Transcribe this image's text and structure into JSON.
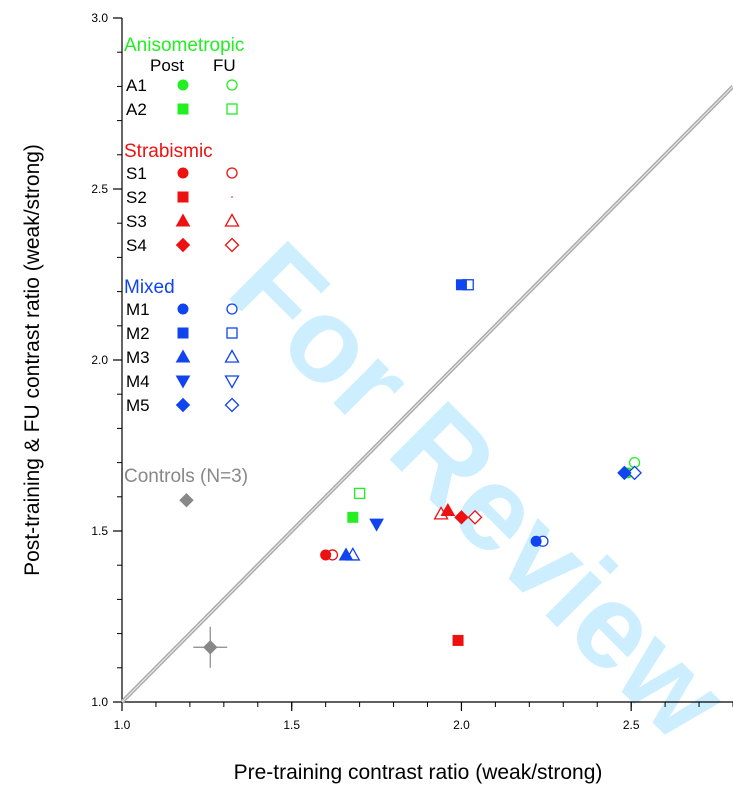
{
  "watermark": "For Review",
  "chart_data": {
    "type": "scatter",
    "title": "",
    "xlabel": "Pre-training contrast ratio (weak/strong)",
    "ylabel": "Post-training & FU contrast ratio (weak/strong)",
    "xlim": [
      1.0,
      2.8
    ],
    "ylim": [
      1.0,
      3.0
    ],
    "xticks": [
      "1.0",
      "1.5",
      "2.0",
      "2.5"
    ],
    "yticks": [
      "1.0",
      "1.5",
      "2.0",
      "2.5",
      "3.0"
    ],
    "grid": false,
    "legend_position": "top-left",
    "reference_line": "unity diagonal",
    "legend": {
      "col_post": "Post",
      "col_fu": "FU",
      "groups": [
        {
          "title": "Anisometropic",
          "color": "#22ee22",
          "rows": [
            {
              "label": "A1",
              "shape": "circle",
              "fu_shape": "circle"
            },
            {
              "label": "A2",
              "shape": "square",
              "fu_shape": "square"
            }
          ]
        },
        {
          "title": "Strabismic",
          "color": "#ee1111",
          "rows": [
            {
              "label": "S1",
              "shape": "circle",
              "fu_shape": "circle"
            },
            {
              "label": "S2",
              "shape": "square",
              "fu_shape": "dot"
            },
            {
              "label": "S3",
              "shape": "triangle-up",
              "fu_shape": "triangle-up"
            },
            {
              "label": "S4",
              "shape": "diamond",
              "fu_shape": "diamond"
            }
          ]
        },
        {
          "title": "Mixed",
          "color": "#1144ee",
          "rows": [
            {
              "label": "M1",
              "shape": "circle",
              "fu_shape": "circle"
            },
            {
              "label": "M2",
              "shape": "square",
              "fu_shape": "square"
            },
            {
              "label": "M3",
              "shape": "triangle-up",
              "fu_shape": "triangle-up"
            },
            {
              "label": "M4",
              "shape": "triangle-down",
              "fu_shape": "triangle-down"
            },
            {
              "label": "M5",
              "shape": "diamond",
              "fu_shape": "diamond"
            }
          ]
        }
      ],
      "controls_label": "Controls (N=3)",
      "controls_color": "#888888"
    },
    "series": [
      {
        "name": "A1",
        "color": "#22ee22",
        "shape": "circle",
        "post": [
          2.49,
          1.67
        ],
        "fu": [
          2.51,
          1.7
        ]
      },
      {
        "name": "A2",
        "color": "#22ee22",
        "shape": "square",
        "post": [
          1.68,
          1.54
        ],
        "fu": [
          1.7,
          1.61
        ]
      },
      {
        "name": "S1",
        "color": "#ee1111",
        "shape": "circle",
        "post": [
          1.6,
          1.43
        ],
        "fu": [
          1.62,
          1.43
        ]
      },
      {
        "name": "S2",
        "color": "#ee1111",
        "shape": "square",
        "post": [
          1.99,
          1.18
        ],
        "fu": null
      },
      {
        "name": "S3",
        "color": "#ee1111",
        "shape": "triangle-up",
        "post": [
          1.96,
          1.56
        ],
        "fu": [
          1.94,
          1.55
        ]
      },
      {
        "name": "S4",
        "color": "#ee1111",
        "shape": "diamond",
        "post": [
          2.0,
          1.54
        ],
        "fu": [
          2.04,
          1.54
        ]
      },
      {
        "name": "M1",
        "color": "#1144ee",
        "shape": "circle",
        "post": [
          2.22,
          1.47
        ],
        "fu": [
          2.24,
          1.47
        ]
      },
      {
        "name": "M2",
        "color": "#1144ee",
        "shape": "square",
        "post": [
          2.0,
          2.22
        ],
        "fu": [
          2.02,
          2.22
        ]
      },
      {
        "name": "M3",
        "color": "#1144ee",
        "shape": "triangle-up",
        "post": [
          1.66,
          1.43
        ],
        "fu": [
          1.68,
          1.43
        ]
      },
      {
        "name": "M4",
        "color": "#1144ee",
        "shape": "triangle-down",
        "post": [
          1.75,
          1.52
        ],
        "fu": null
      },
      {
        "name": "M5",
        "color": "#1144ee",
        "shape": "diamond",
        "post": [
          2.48,
          1.67
        ],
        "fu": [
          2.51,
          1.67
        ]
      },
      {
        "name": "Controls (N=3)",
        "color": "#888888",
        "shape": "diamond",
        "post": [
          1.19,
          1.59
        ],
        "fu": null
      },
      {
        "name": "Controls (N=3)",
        "color": "#888888",
        "shape": "diamond",
        "post": [
          1.26,
          1.16
        ],
        "fu": null,
        "xerr": 0.05,
        "yerr": 0.06
      }
    ]
  }
}
